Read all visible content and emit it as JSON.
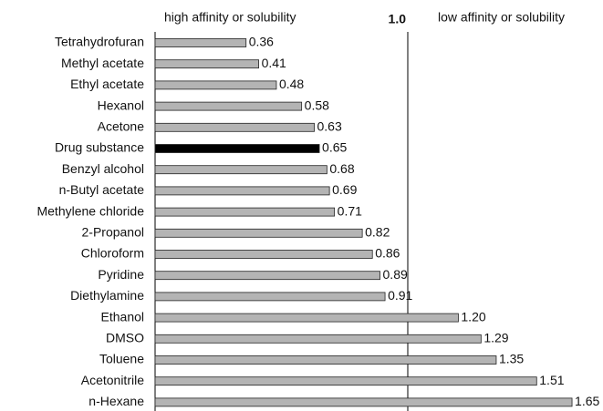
{
  "chart_data": {
    "type": "bar",
    "orientation": "horizontal",
    "annotations": [
      "high affinity or solubility",
      "low affinity or solubility"
    ],
    "categories": [
      "Tetrahydrofuran",
      "Methyl acetate",
      "Ethyl acetate",
      "Hexanol",
      "Acetone",
      "Drug substance",
      "Benzyl alcohol",
      "n-Butyl acetate",
      "Methylene chloride",
      "2-Propanol",
      "Chloroform",
      "Pyridine",
      "Diethylamine",
      "Ethanol",
      "DMSO",
      "Toluene",
      "Acetonitrile",
      "n-Hexane"
    ],
    "values": [
      0.36,
      0.41,
      0.48,
      0.58,
      0.63,
      0.65,
      0.68,
      0.69,
      0.71,
      0.82,
      0.86,
      0.89,
      0.91,
      1.2,
      1.29,
      1.35,
      1.51,
      1.65
    ],
    "value_labels": [
      "0.36",
      "0.41",
      "0.48",
      "0.58",
      "0.63",
      "0.65",
      "0.68",
      "0.69",
      "0.71",
      "0.82",
      "0.86",
      "0.89",
      "0.91",
      "1.20",
      "1.29",
      "1.35",
      "1.51",
      "1.65"
    ],
    "colors": [
      "#b4b4b4",
      "#b4b4b4",
      "#b4b4b4",
      "#b4b4b4",
      "#b4b4b4",
      "#000000",
      "#b4b4b4",
      "#b4b4b4",
      "#b4b4b4",
      "#b4b4b4",
      "#b4b4b4",
      "#b4b4b4",
      "#b4b4b4",
      "#b4b4b4",
      "#b4b4b4",
      "#b4b4b4",
      "#b4b4b4",
      "#b4b4b4"
    ],
    "xlim": [
      0,
      1.75
    ],
    "xticks": [
      {
        "value": 1,
        "label": "1.0"
      }
    ]
  }
}
